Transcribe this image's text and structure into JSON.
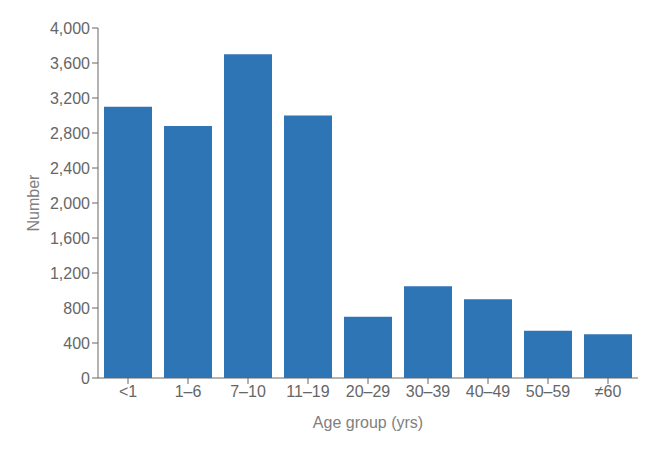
{
  "chart_data": {
    "type": "bar",
    "categories": [
      "<1",
      "1–6",
      "7–10",
      "11–19",
      "20–29",
      "30–39",
      "40–49",
      "50–59",
      "≠60"
    ],
    "values": [
      3100,
      2880,
      3700,
      3000,
      700,
      1050,
      900,
      540,
      500
    ],
    "color": "#2e75b6",
    "xlabel": "Age group (yrs)",
    "ylabel": "Number",
    "ylim": [
      0,
      4000
    ],
    "yticks": [
      0,
      400,
      800,
      {
        "value": 1200,
        "label": "1,200"
      },
      {
        "value": 1600,
        "label": "1,600"
      },
      {
        "value": 2000,
        "label": "2,000"
      },
      {
        "value": 2400,
        "label": "2,400"
      },
      {
        "value": 2800,
        "label": "2,800"
      },
      {
        "value": 3200,
        "label": "3,200"
      },
      {
        "value": 3600,
        "label": "3,600"
      },
      {
        "value": 4000,
        "label": "4,000"
      }
    ],
    "grid": false
  }
}
